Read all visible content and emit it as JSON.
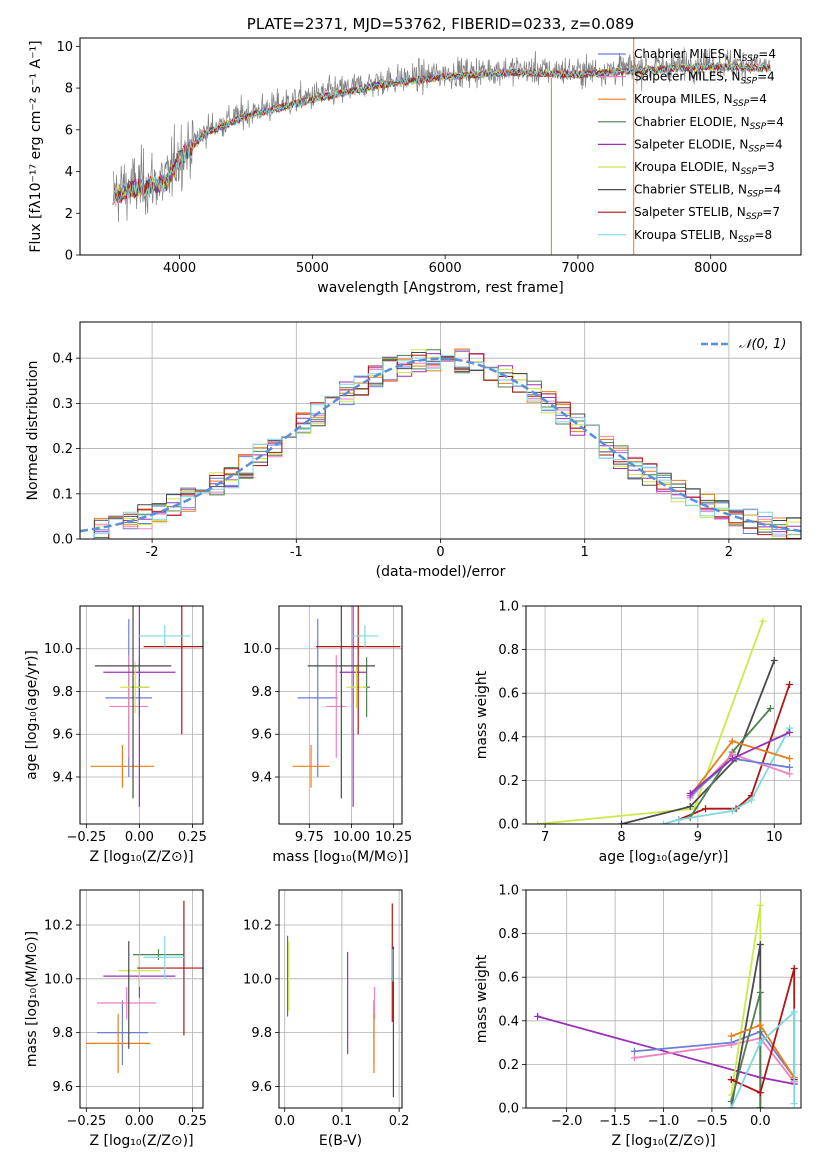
{
  "colors": {
    "Chabrier MILES": "#6b7fd7",
    "Salpeter MILES": "#f081c0",
    "Kroupa MILES": "#e87e1a",
    "Chabrier ELODIE": "#4f7f50",
    "Salpeter ELODIE": "#9b30b8",
    "Kroupa ELODIE": "#cde84a",
    "Chabrier STELIB": "#4a4a4a",
    "Salpeter STELIB": "#b01515",
    "Kroupa STELIB": "#7fd8e0",
    "normal": "#5b8fdb",
    "grid": "#b0b0b0"
  },
  "chart_data": [
    {
      "id": "spectrum",
      "type": "line",
      "title": "PLATE=2371, MJD=53762, FIBERID=0233, z=0.089",
      "xlabel": "wavelength [Angstrom, rest frame]",
      "ylabel": "Flux [fλ10⁻¹⁷ erg cm⁻² s⁻¹ A⁻¹]",
      "xlim": [
        3250,
        8680
      ],
      "ylim": [
        0,
        10.4
      ],
      "xticks": [
        4000,
        5000,
        6000,
        7000,
        8000
      ],
      "yticks": [
        0,
        2,
        4,
        6,
        8,
        10
      ],
      "grid": false,
      "legend_placement": "upper right",
      "legend": [
        {
          "base": "Chabrier MILES, N",
          "sub": "SSP",
          "tail": "=4"
        },
        {
          "base": "Salpeter MILES, N",
          "sub": "SSP",
          "tail": "=4"
        },
        {
          "base": "Kroupa MILES, N",
          "sub": "SSP",
          "tail": "=4"
        },
        {
          "base": "Chabrier ELODIE, N",
          "sub": "SSP",
          "tail": "=4"
        },
        {
          "base": "Salpeter ELODIE, N",
          "sub": "SSP",
          "tail": "=4"
        },
        {
          "base": "Kroupa ELODIE, N",
          "sub": "SSP",
          "tail": "=3"
        },
        {
          "base": "Chabrier STELIB, N",
          "sub": "SSP",
          "tail": "=4"
        },
        {
          "base": "Salpeter STELIB, N",
          "sub": "SSP",
          "tail": "=7"
        },
        {
          "base": "Kroupa STELIB, N",
          "sub": "SSP",
          "tail": "=8"
        }
      ],
      "data_trend": {
        "x": [
          3500,
          3700,
          3900,
          4000,
          4200,
          4500,
          5000,
          5500,
          6000,
          6500,
          7000,
          7500,
          8000,
          8450
        ],
        "y": [
          3.0,
          3.4,
          3.6,
          4.8,
          6.0,
          6.8,
          7.6,
          8.3,
          8.7,
          8.9,
          8.8,
          9.0,
          9.2,
          9.1
        ]
      }
    },
    {
      "id": "residuals",
      "type": "bar",
      "xlabel": "(data-model)/error",
      "ylabel": "Normed distribution",
      "xlim": [
        -2.5,
        2.5
      ],
      "ylim": [
        0,
        0.48
      ],
      "xticks": [
        -2,
        -1,
        0,
        1,
        2
      ],
      "yticks": [
        0.0,
        0.1,
        0.2,
        0.3,
        0.4
      ],
      "grid": true,
      "legend_label": "𝒩(0, 1)",
      "legend_placement": "upper right",
      "bin_width": 0.1
    },
    {
      "id": "age-vs-Z",
      "type": "scatter",
      "xlabel": "Z [log₁₀(Z/Z⊙)]",
      "ylabel": "age  [log₁₀(age/yr)]",
      "xlim": [
        -0.28,
        0.3
      ],
      "ylim": [
        9.18,
        10.2
      ],
      "xticks": [
        -0.25,
        0.0,
        0.25
      ],
      "xticklabels": [
        "−0.25",
        "0.00",
        "0.25"
      ],
      "yticks": [
        9.4,
        9.6,
        9.8,
        10.0
      ],
      "grid": true,
      "points": [
        {
          "model": "Chabrier MILES",
          "x": -0.05,
          "xerr": 0.11,
          "y": 9.77,
          "yerr": 0.37
        },
        {
          "model": "Salpeter MILES",
          "x": -0.05,
          "xerr": 0.09,
          "y": 9.73,
          "yerr": 0.24
        },
        {
          "model": "Kroupa MILES",
          "x": -0.08,
          "xerr": 0.15,
          "y": 9.45,
          "yerr": 0.1
        },
        {
          "model": "Chabrier ELODIE",
          "x": 0.0,
          "xerr": 0.04,
          "y": 9.82,
          "yerr": 0.14
        },
        {
          "model": "Salpeter ELODIE",
          "x": 0.0,
          "xerr": 0.17,
          "y": 9.89,
          "yerr": 0.63
        },
        {
          "model": "Kroupa ELODIE",
          "x": -0.02,
          "xerr": 0.07,
          "y": 9.82,
          "yerr": 0.12
        },
        {
          "model": "Chabrier STELIB",
          "x": -0.03,
          "xerr": 0.18,
          "y": 9.92,
          "yerr": 0.62
        },
        {
          "model": "Salpeter STELIB",
          "x": 0.2,
          "xerr": 0.18,
          "y": 10.01,
          "yerr": 0.41
        },
        {
          "model": "Kroupa STELIB",
          "x": 0.12,
          "xerr": 0.12,
          "y": 10.06,
          "yerr": 0.05
        }
      ]
    },
    {
      "id": "age-vs-mass",
      "type": "scatter",
      "xlabel": "mass [log₁₀(M/M⊙)]",
      "ylabel": "",
      "xlim": [
        9.57,
        10.3
      ],
      "ylim": [
        9.18,
        10.2
      ],
      "xticks": [
        9.75,
        10.0,
        10.25
      ],
      "xticklabels": [
        "9.75",
        "10.00",
        "10.25"
      ],
      "yticks": [
        9.4,
        9.6,
        9.8,
        10.0
      ],
      "grid": true,
      "points": [
        {
          "model": "Chabrier MILES",
          "x": 9.8,
          "xerr": 0.12,
          "y": 9.77,
          "yerr": 0.37
        },
        {
          "model": "Salpeter MILES",
          "x": 9.91,
          "xerr": 0.06,
          "y": 9.73,
          "yerr": 0.24
        },
        {
          "model": "Kroupa MILES",
          "x": 9.76,
          "xerr": 0.11,
          "y": 9.45,
          "yerr": 0.1
        },
        {
          "model": "Chabrier ELODIE",
          "x": 10.09,
          "xerr": 0.02,
          "y": 9.82,
          "yerr": 0.14
        },
        {
          "model": "Salpeter ELODIE",
          "x": 10.01,
          "xerr": 0.08,
          "y": 9.89,
          "yerr": 0.63
        },
        {
          "model": "Kroupa ELODIE",
          "x": 10.03,
          "xerr": 0.06,
          "y": 9.82,
          "yerr": 0.1
        },
        {
          "model": "Chabrier STELIB",
          "x": 9.94,
          "xerr": 0.2,
          "y": 9.92,
          "yerr": 0.62
        },
        {
          "model": "Salpeter STELIB",
          "x": 10.04,
          "xerr": 0.25,
          "y": 10.01,
          "yerr": 0.41
        },
        {
          "model": "Kroupa STELIB",
          "x": 10.08,
          "xerr": 0.08,
          "y": 10.06,
          "yerr": 0.05
        }
      ]
    },
    {
      "id": "mass-weight-vs-age",
      "type": "line",
      "xlabel": "age  [log₁₀(age/yr)]",
      "ylabel": "mass weight",
      "xlim": [
        6.75,
        10.35
      ],
      "ylim": [
        0,
        1.0
      ],
      "xticks": [
        7,
        8,
        9,
        10
      ],
      "yticks": [
        0.0,
        0.2,
        0.4,
        0.6,
        0.8,
        1.0
      ],
      "grid": true,
      "series": [
        {
          "model": "Kroupa ELODIE",
          "x": [
            6.9,
            8.95,
            9.85
          ],
          "y": [
            0.0,
            0.07,
            0.93
          ]
        },
        {
          "model": "Chabrier STELIB",
          "x": [
            8.0,
            8.9,
            9.5,
            10.0
          ],
          "y": [
            0.0,
            0.08,
            0.3,
            0.75
          ]
        },
        {
          "model": "Salpeter STELIB",
          "x": [
            8.75,
            9.1,
            9.5,
            9.7,
            10.2
          ],
          "y": [
            0.02,
            0.07,
            0.07,
            0.13,
            0.64
          ]
        },
        {
          "model": "Chabrier ELODIE",
          "x": [
            8.9,
            9.45,
            9.95
          ],
          "y": [
            0.03,
            0.33,
            0.53
          ]
        },
        {
          "model": "Kroupa STELIB",
          "x": [
            8.55,
            8.75,
            9.45,
            9.7,
            10.2
          ],
          "y": [
            0.0,
            0.02,
            0.06,
            0.11,
            0.44
          ]
        },
        {
          "model": "Kroupa MILES",
          "x": [
            8.9,
            9.45,
            10.2
          ],
          "y": [
            0.13,
            0.38,
            0.3
          ]
        },
        {
          "model": "Salpeter MILES",
          "x": [
            8.9,
            9.45,
            10.2
          ],
          "y": [
            0.12,
            0.32,
            0.23
          ]
        },
        {
          "model": "Chabrier MILES",
          "x": [
            8.9,
            9.45,
            10.2
          ],
          "y": [
            0.13,
            0.3,
            0.26
          ]
        },
        {
          "model": "Salpeter ELODIE",
          "x": [
            8.9,
            9.45,
            10.2
          ],
          "y": [
            0.14,
            0.3,
            0.42
          ]
        }
      ]
    },
    {
      "id": "mass-vs-Z",
      "type": "scatter",
      "xlabel": "Z [log₁₀(Z/Z⊙)]",
      "ylabel": "mass [log₁₀(M/M⊙)]",
      "xlim": [
        -0.28,
        0.3
      ],
      "ylim": [
        9.52,
        10.33
      ],
      "xticks": [
        -0.25,
        0.0,
        0.25
      ],
      "xticklabels": [
        "−0.25",
        "0.00",
        "0.25"
      ],
      "yticks": [
        9.6,
        9.8,
        10.0,
        10.2
      ],
      "grid": true,
      "points": [
        {
          "model": "Chabrier MILES",
          "x": -0.08,
          "xerr": 0.12,
          "y": 9.8,
          "yerr": 0.12
        },
        {
          "model": "Salpeter MILES",
          "x": -0.06,
          "xerr": 0.14,
          "y": 9.91,
          "yerr": 0.06
        },
        {
          "model": "Kroupa MILES",
          "x": -0.1,
          "xerr": 0.15,
          "y": 9.76,
          "yerr": 0.11
        },
        {
          "model": "Chabrier ELODIE",
          "x": 0.09,
          "xerr": 0.12,
          "y": 10.09,
          "yerr": 0.02
        },
        {
          "model": "Salpeter ELODIE",
          "x": 0.0,
          "xerr": 0.17,
          "y": 10.01,
          "yerr": 0.08
        },
        {
          "model": "Kroupa ELODIE",
          "x": 0.0,
          "xerr": 0.1,
          "y": 10.03,
          "yerr": 0.06
        },
        {
          "model": "Chabrier STELIB",
          "x": -0.05,
          "xerr": 0.0,
          "y": 9.94,
          "yerr": 0.2
        },
        {
          "model": "Salpeter STELIB",
          "x": 0.21,
          "xerr": 0.22,
          "y": 10.04,
          "yerr": 0.25
        },
        {
          "model": "Kroupa STELIB",
          "x": 0.12,
          "xerr": 0.1,
          "y": 10.08,
          "yerr": 0.08
        }
      ]
    },
    {
      "id": "mass-vs-EBV",
      "type": "scatter",
      "xlabel": "E(B-V)",
      "ylabel": "",
      "xlim": [
        -0.01,
        0.205
      ],
      "ylim": [
        9.52,
        10.33
      ],
      "xticks": [
        0.0,
        0.1,
        0.2
      ],
      "xticklabels": [
        "0.0",
        "0.1",
        "0.2"
      ],
      "yticks": [
        9.6,
        9.8,
        10.0,
        10.2
      ],
      "grid": true,
      "points": [
        {
          "model": "Chabrier MILES",
          "x": 0.156,
          "xerr": 0.0,
          "y": 9.8,
          "yerr": 0.12
        },
        {
          "model": "Salpeter MILES",
          "x": 0.157,
          "xerr": 0.0,
          "y": 9.91,
          "yerr": 0.06
        },
        {
          "model": "Kroupa MILES",
          "x": 0.156,
          "xerr": 0.0,
          "y": 9.76,
          "yerr": 0.11
        },
        {
          "model": "Chabrier ELODIE",
          "x": 0.005,
          "xerr": 0.0,
          "y": 10.01,
          "yerr": 0.15
        },
        {
          "model": "Salpeter ELODIE",
          "x": 0.11,
          "xerr": 0.0,
          "y": 9.91,
          "yerr": 0.19
        },
        {
          "model": "Kroupa ELODIE",
          "x": 0.007,
          "xerr": 0.0,
          "y": 10.01,
          "yerr": 0.13
        },
        {
          "model": "Chabrier STELIB",
          "x": 0.19,
          "xerr": 0.0,
          "y": 9.84,
          "yerr": 0.28
        },
        {
          "model": "Salpeter STELIB",
          "x": 0.188,
          "xerr": 0.0,
          "y": 10.06,
          "yerr": 0.22
        },
        {
          "model": "Kroupa STELIB",
          "x": 0.189,
          "xerr": 0.0,
          "y": 10.05,
          "yerr": 0.06
        }
      ]
    },
    {
      "id": "mass-weight-vs-Z",
      "type": "line",
      "xlabel": "Z [log₁₀(Z/Z⊙)]",
      "ylabel": "mass weight",
      "xlim": [
        -2.42,
        0.42
      ],
      "ylim": [
        0,
        1.0
      ],
      "xticks": [
        -2.0,
        -1.5,
        -1.0,
        -0.5,
        0.0
      ],
      "xticklabels": [
        "−2.0",
        "−1.5",
        "−1.0",
        "−0.5",
        "0.0"
      ],
      "yticks": [
        0.0,
        0.2,
        0.4,
        0.6,
        0.8,
        1.0
      ],
      "grid": true,
      "series": [
        {
          "model": "Salpeter ELODIE",
          "x": [
            -2.3,
            0.0,
            0.35
          ],
          "y": [
            0.42,
            0.14,
            0.11
          ]
        },
        {
          "model": "Chabrier MILES",
          "x": [
            -1.3,
            -0.3,
            0.0,
            0.35
          ],
          "y": [
            0.26,
            0.3,
            0.35,
            0.14
          ]
        },
        {
          "model": "Salpeter MILES",
          "x": [
            -1.3,
            -0.3,
            0.0,
            0.35
          ],
          "y": [
            0.23,
            0.29,
            0.32,
            0.12
          ]
        },
        {
          "model": "Kroupa ELODIE",
          "x": [
            -0.3,
            0.0,
            0.0
          ],
          "y": [
            0.06,
            0.93,
            0.0
          ]
        },
        {
          "model": "Chabrier STELIB",
          "x": [
            -0.3,
            0.0,
            0.0,
            0.0
          ],
          "y": [
            0.0,
            0.75,
            0.3,
            0.0
          ]
        },
        {
          "model": "Chabrier ELODIE",
          "x": [
            -0.3,
            0.0,
            0.0
          ],
          "y": [
            0.03,
            0.53,
            0.0
          ]
        },
        {
          "model": "Kroupa MILES",
          "x": [
            -0.3,
            0.0,
            0.35
          ],
          "y": [
            0.33,
            0.38,
            0.14
          ]
        },
        {
          "model": "Salpeter STELIB",
          "x": [
            -0.3,
            0.0,
            0.35,
            0.35
          ],
          "y": [
            0.13,
            0.07,
            0.64,
            0.13
          ]
        },
        {
          "model": "Kroupa STELIB",
          "x": [
            -0.3,
            0.0,
            0.35,
            0.35
          ],
          "y": [
            0.0,
            0.3,
            0.44,
            0.02
          ]
        }
      ]
    }
  ]
}
